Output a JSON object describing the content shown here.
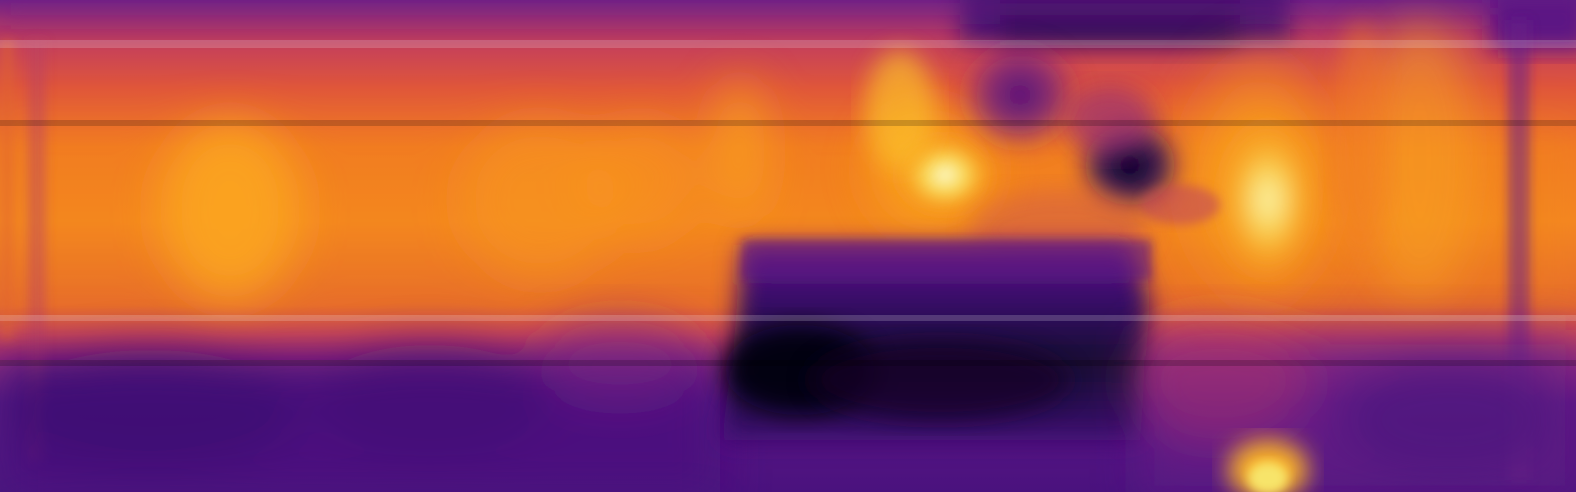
{
  "image": {
    "kind": "heatmap",
    "colormap": "inferno",
    "palette": {
      "darkest": "#0a0218",
      "dark_purple": "#3b0f70",
      "purple": "#6a1b87",
      "magenta": "#b0346b",
      "red_orange": "#e0573a",
      "orange": "#f58b1c",
      "amber": "#fbb326",
      "yellow": "#f7e46b",
      "brightest": "#fbf6c0"
    }
  }
}
